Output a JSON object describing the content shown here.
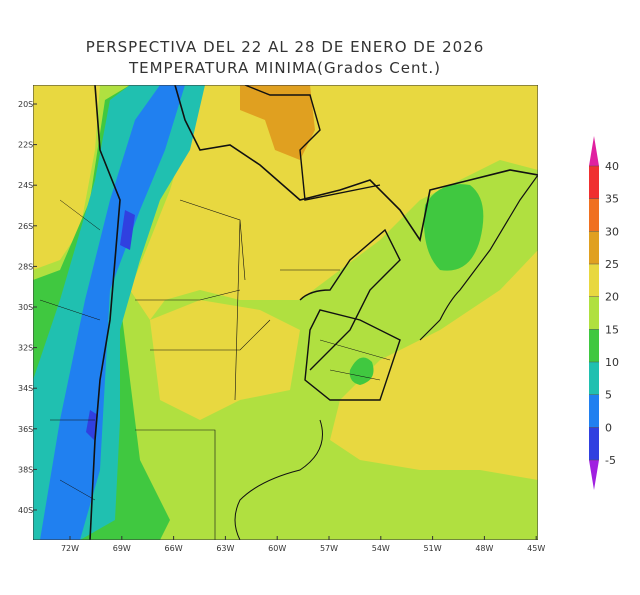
{
  "header": {
    "title": "PERSPECTIVA DEL 22 AL 28 DE ENERO DE 2026",
    "subtitle": "TEMPERATURA MINIMA(Grados Cent.)"
  },
  "lat_labels": [
    "20S",
    "22S",
    "24S",
    "26S",
    "28S",
    "30S",
    "32S",
    "34S",
    "36S",
    "38S",
    "40S"
  ],
  "lon_labels": [
    "72W",
    "69W",
    "66W",
    "63W",
    "60W",
    "57W",
    "54W",
    "51W",
    "48W",
    "45W"
  ],
  "colorbar": {
    "ticks": [
      -5,
      0,
      5,
      10,
      15,
      20,
      25,
      30,
      35,
      40
    ],
    "colors": [
      "#a020e0",
      "#3040e0",
      "#2080f0",
      "#20c0b0",
      "#40c840",
      "#b0e040",
      "#e8d840",
      "#e0a020",
      "#f07020",
      "#f03030",
      "#e020a0"
    ]
  }
}
